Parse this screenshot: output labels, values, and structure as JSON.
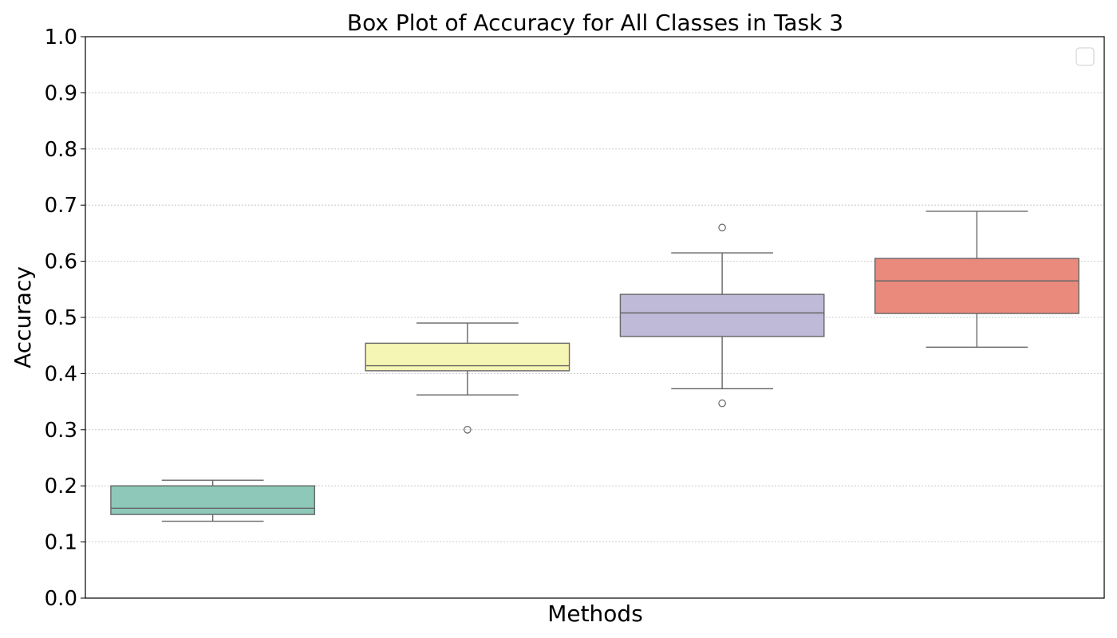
{
  "chart_data": {
    "type": "box",
    "title": "Box Plot of Accuracy for All Classes in Task 3",
    "xlabel": "Methods",
    "ylabel": "Accuracy",
    "ylim": [
      0,
      1
    ],
    "yticks": [
      "0.0",
      "0.1",
      "0.2",
      "0.3",
      "0.4",
      "0.5",
      "0.6",
      "0.7",
      "0.8",
      "0.9",
      "1.0"
    ],
    "grid": "horizontal dotted",
    "legend": "top-right (empty)",
    "boxes": [
      {
        "color": "#8dc8b9",
        "whisker_low": 0.137,
        "q1": 0.149,
        "median": 0.16,
        "q3": 0.2,
        "whisker_high": 0.21,
        "outliers": []
      },
      {
        "color": "#f6f6b4",
        "whisker_low": 0.362,
        "q1": 0.405,
        "median": 0.414,
        "q3": 0.454,
        "whisker_high": 0.49,
        "outliers": [
          0.3
        ]
      },
      {
        "color": "#bebad8",
        "whisker_low": 0.373,
        "q1": 0.466,
        "median": 0.508,
        "q3": 0.541,
        "whisker_high": 0.615,
        "outliers": [
          0.66,
          0.347
        ]
      },
      {
        "color": "#ea8a7c",
        "whisker_low": 0.447,
        "q1": 0.507,
        "median": 0.565,
        "q3": 0.605,
        "whisker_high": 0.689,
        "outliers": []
      }
    ]
  }
}
